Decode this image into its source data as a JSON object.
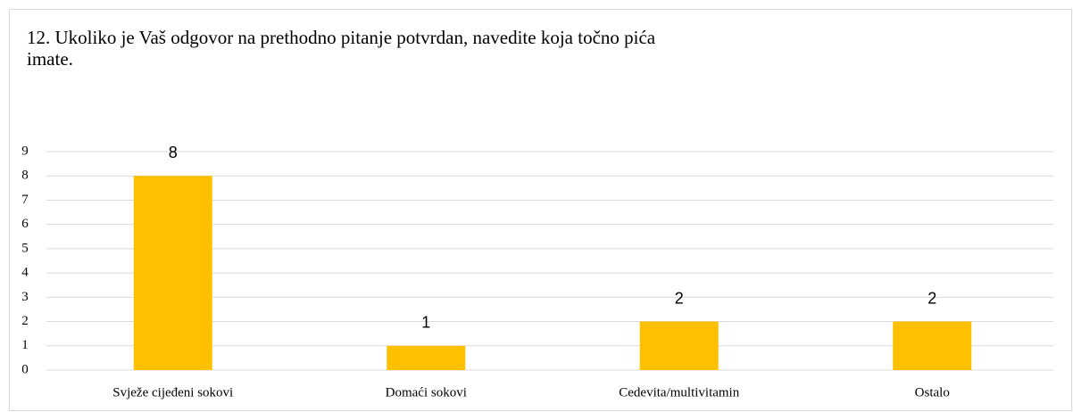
{
  "chart_data": {
    "type": "bar",
    "title": "12. Ukoliko je Vaš odgovor na prethodno pitanje potvrdan, navedite koja točno pića imate.",
    "categories": [
      "Svježe cijeđeni sokovi",
      "Domaći sokovi",
      "Cedevita/multivitamin",
      "Ostalo"
    ],
    "values": [
      8,
      1,
      2,
      2
    ],
    "color": "#ffc000",
    "ylim": [
      0,
      9
    ],
    "yticks": [
      0,
      1,
      2,
      3,
      4,
      5,
      6,
      7,
      8,
      9
    ],
    "grid": true
  }
}
